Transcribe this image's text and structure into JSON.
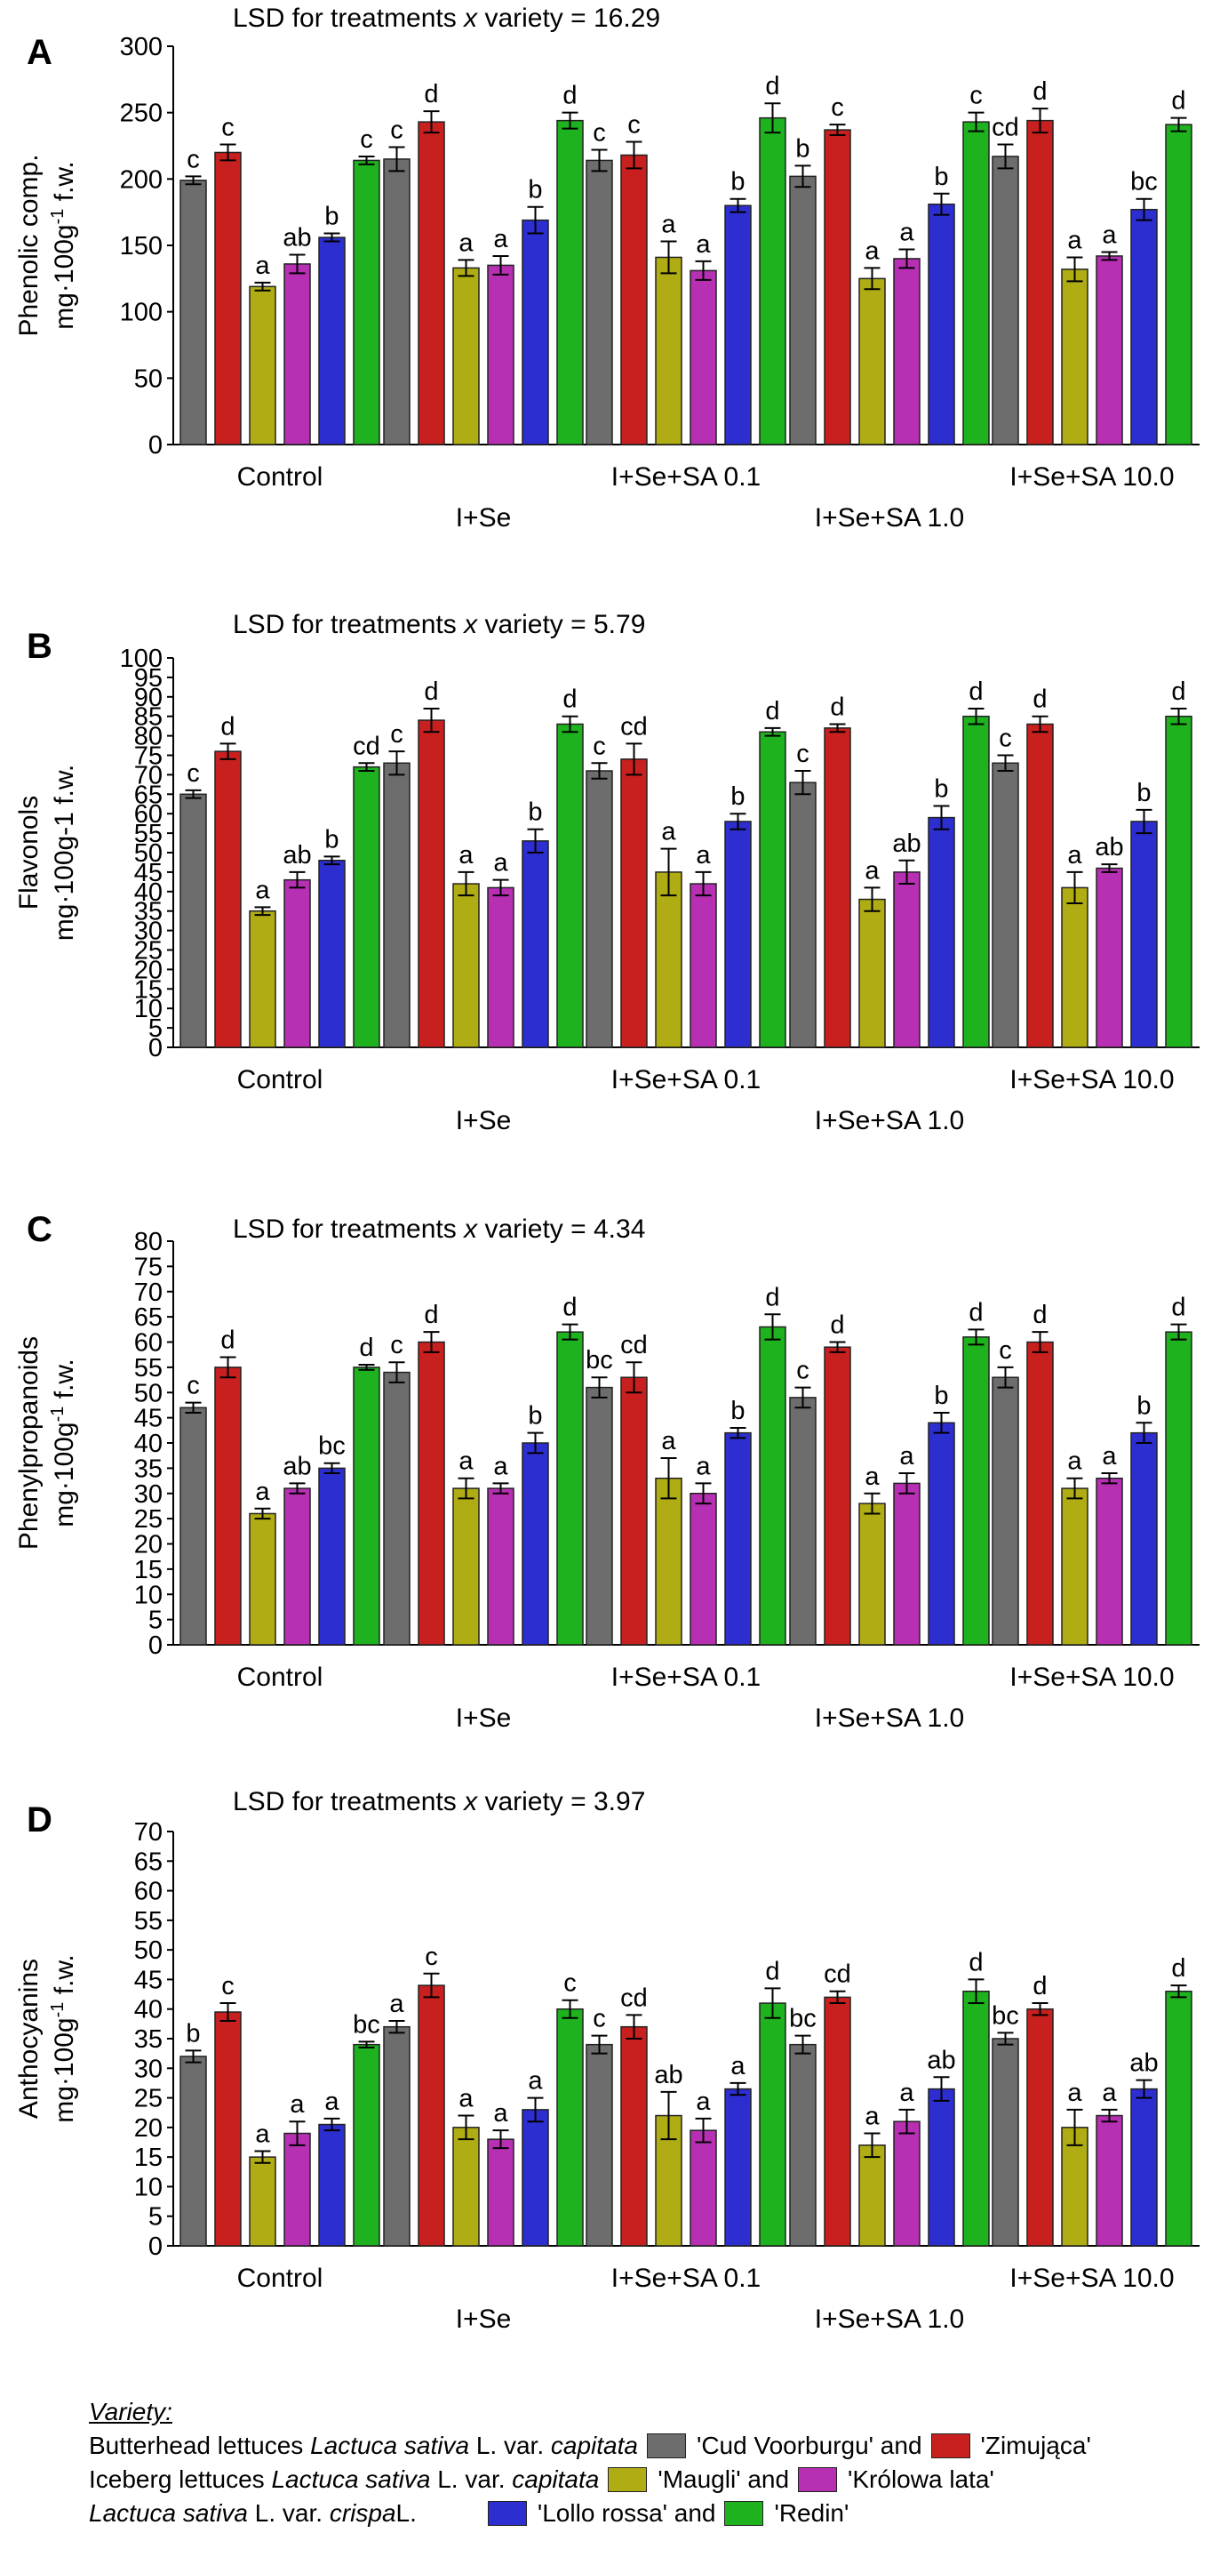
{
  "colors": {
    "Cud Voorburgu": "#6d6d6d",
    "Zimujaca": "#c8201e",
    "Maugli": "#b0ad14",
    "Krolowa lata": "#b72fb3",
    "Lollo rossa": "#2c2ed0",
    "Redin": "#1fb21f"
  },
  "chart_data": [
    {
      "type": "bar",
      "panel_letter": "A",
      "title": "LSD for treatments",
      "title_x": "x",
      "title_suffix": "variety = 16.29",
      "ylabel_line1": "Phenolic comp.",
      "ylabel_line2_pre": "mg·100g",
      "ylabel_sup": "-1",
      "ylabel_line2_post": " f.w.",
      "ylim": [
        0,
        300
      ],
      "yticks": [
        0,
        50,
        100,
        150,
        200,
        250,
        300
      ],
      "categories": [
        "Control",
        "I+Se",
        "I+Se+SA 0.1",
        "I+Se+SA 1.0",
        "I+Se+SA 10.0"
      ],
      "series": [
        {
          "name": "'Cud Voorburgu'",
          "values": [
            199,
            215,
            214,
            202,
            217
          ],
          "errors": [
            3,
            9,
            8,
            8,
            9
          ],
          "letters": [
            "c",
            "c",
            "c",
            "b",
            "cd"
          ]
        },
        {
          "name": "'Zimująca'",
          "values": [
            220,
            243,
            218,
            237,
            244
          ],
          "errors": [
            6,
            8,
            10,
            4,
            9
          ],
          "letters": [
            "c",
            "d",
            "c",
            "c",
            "d"
          ]
        },
        {
          "name": "'Maugli'",
          "values": [
            119,
            133,
            141,
            125,
            132
          ],
          "errors": [
            3,
            6,
            12,
            8,
            9
          ],
          "letters": [
            "a",
            "a",
            "a",
            "a",
            "a"
          ]
        },
        {
          "name": "'Królowa lata'",
          "values": [
            136,
            135,
            131,
            140,
            142
          ],
          "errors": [
            7,
            7,
            7,
            7,
            3
          ],
          "letters": [
            "ab",
            "a",
            "a",
            "a",
            "a"
          ]
        },
        {
          "name": "'Lollo rossa'",
          "values": [
            156,
            169,
            180,
            181,
            177
          ],
          "errors": [
            3,
            10,
            5,
            8,
            8
          ],
          "letters": [
            "b",
            "b",
            "b",
            "b",
            "bc"
          ]
        },
        {
          "name": "'Redin'",
          "values": [
            214,
            244,
            246,
            243,
            241
          ],
          "errors": [
            3,
            6,
            11,
            7,
            5
          ],
          "letters": [
            "c",
            "d",
            "d",
            "c",
            "d"
          ]
        }
      ]
    },
    {
      "type": "bar",
      "panel_letter": "B",
      "title": "LSD for treatments",
      "title_x": "x",
      "title_suffix": "variety = 5.79",
      "ylabel_line1": "Flavonols",
      "ylabel_line2_pre": "mg·100g-1 f.w.",
      "ylabel_sup": "",
      "ylabel_line2_post": "",
      "ylim": [
        0,
        100
      ],
      "yticks": [
        0,
        5,
        10,
        15,
        20,
        25,
        30,
        35,
        40,
        45,
        50,
        55,
        60,
        65,
        70,
        75,
        80,
        85,
        90,
        95,
        100
      ],
      "categories": [
        "Control",
        "I+Se",
        "I+Se+SA 0.1",
        "I+Se+SA 1.0",
        "I+Se+SA 10.0"
      ],
      "series": [
        {
          "name": "'Cud Voorburgu'",
          "values": [
            65,
            73,
            71,
            68,
            73
          ],
          "errors": [
            1,
            3,
            2,
            3,
            2
          ],
          "letters": [
            "c",
            "c",
            "c",
            "c",
            "c"
          ]
        },
        {
          "name": "'Zimująca'",
          "values": [
            76,
            84,
            74,
            82,
            83
          ],
          "errors": [
            2,
            3,
            4,
            1,
            2
          ],
          "letters": [
            "d",
            "d",
            "cd",
            "d",
            "d"
          ]
        },
        {
          "name": "'Maugli'",
          "values": [
            35,
            42,
            45,
            38,
            41
          ],
          "errors": [
            1,
            3,
            6,
            3,
            4
          ],
          "letters": [
            "a",
            "a",
            "a",
            "a",
            "a"
          ]
        },
        {
          "name": "'Królowa lata'",
          "values": [
            43,
            41,
            42,
            45,
            46
          ],
          "errors": [
            2,
            2,
            3,
            3,
            1
          ],
          "letters": [
            "ab",
            "a",
            "a",
            "ab",
            "ab"
          ]
        },
        {
          "name": "'Lollo rossa'",
          "values": [
            48,
            53,
            58,
            59,
            58
          ],
          "errors": [
            1,
            3,
            2,
            3,
            3
          ],
          "letters": [
            "b",
            "b",
            "b",
            "b",
            "b"
          ]
        },
        {
          "name": "'Redin'",
          "values": [
            72,
            83,
            81,
            85,
            85
          ],
          "errors": [
            1,
            2,
            1,
            2,
            2
          ],
          "letters": [
            "cd",
            "d",
            "d",
            "d",
            "d"
          ]
        }
      ]
    },
    {
      "type": "bar",
      "panel_letter": "C",
      "title": "LSD for treatments",
      "title_x": "x",
      "title_suffix": "variety = 4.34",
      "ylabel_line1": "Phenylpropanoids",
      "ylabel_line2_pre": "mg·100g",
      "ylabel_sup": "-1",
      "ylabel_line2_post": " f.w.",
      "ylim": [
        0,
        80
      ],
      "yticks": [
        0,
        5,
        10,
        15,
        20,
        25,
        30,
        35,
        40,
        45,
        50,
        55,
        60,
        65,
        70,
        75,
        80
      ],
      "categories": [
        "Control",
        "I+Se",
        "I+Se+SA 0.1",
        "I+Se+SA 1.0",
        "I+Se+SA 10.0"
      ],
      "series": [
        {
          "name": "'Cud Voorburgu'",
          "values": [
            47,
            54,
            51,
            49,
            53
          ],
          "errors": [
            1,
            2,
            2,
            2,
            2
          ],
          "letters": [
            "c",
            "c",
            "bc",
            "c",
            "c"
          ]
        },
        {
          "name": "'Zimująca'",
          "values": [
            55,
            60,
            53,
            59,
            60
          ],
          "errors": [
            2,
            2,
            3,
            1,
            2
          ],
          "letters": [
            "d",
            "d",
            "cd",
            "d",
            "d"
          ]
        },
        {
          "name": "'Maugli'",
          "values": [
            26,
            31,
            33,
            28,
            31
          ],
          "errors": [
            1,
            2,
            4,
            2,
            2
          ],
          "letters": [
            "a",
            "a",
            "a",
            "a",
            "a"
          ]
        },
        {
          "name": "'Królowa lata'",
          "values": [
            31,
            31,
            30,
            32,
            33
          ],
          "errors": [
            1,
            1,
            2,
            2,
            1
          ],
          "letters": [
            "ab",
            "a",
            "a",
            "a",
            "a"
          ]
        },
        {
          "name": "'Lollo rossa'",
          "values": [
            35,
            40,
            42,
            44,
            42
          ],
          "errors": [
            1,
            2,
            1,
            2,
            2
          ],
          "letters": [
            "bc",
            "b",
            "b",
            "b",
            "b"
          ]
        },
        {
          "name": "'Redin'",
          "values": [
            55,
            62,
            63,
            61,
            62
          ],
          "errors": [
            0.5,
            1.5,
            2.5,
            1.5,
            1.5
          ],
          "letters": [
            "d",
            "d",
            "d",
            "d",
            "d"
          ]
        }
      ]
    },
    {
      "type": "bar",
      "panel_letter": "D",
      "title": "LSD for treatments",
      "title_x": "x",
      "title_suffix": "variety = 3.97",
      "ylabel_line1": "Anthocyanins",
      "ylabel_line2_pre": "mg·100g",
      "ylabel_sup": "-1",
      "ylabel_line2_post": " f.w.",
      "ylim": [
        0,
        70
      ],
      "yticks": [
        0,
        5,
        10,
        15,
        20,
        25,
        30,
        35,
        40,
        45,
        50,
        55,
        60,
        65,
        70
      ],
      "categories": [
        "Control",
        "I+Se",
        "I+Se+SA 0.1",
        "I+Se+SA 1.0",
        "I+Se+SA 10.0"
      ],
      "series": [
        {
          "name": "'Cud Voorburgu'",
          "values": [
            32,
            37,
            34,
            34,
            35
          ],
          "errors": [
            1,
            1,
            1.5,
            1.5,
            1
          ],
          "letters": [
            "b",
            "a",
            "c",
            "bc",
            "bc"
          ]
        },
        {
          "name": "'Zimująca'",
          "values": [
            39.5,
            44,
            37,
            42,
            40
          ],
          "errors": [
            1.5,
            2,
            2,
            1,
            1
          ],
          "letters": [
            "c",
            "c",
            "cd",
            "cd",
            "d"
          ]
        },
        {
          "name": "'Maugli'",
          "values": [
            15,
            20,
            22,
            17,
            20
          ],
          "errors": [
            1,
            2,
            4,
            2,
            3
          ],
          "letters": [
            "a",
            "a",
            "ab",
            "a",
            "a"
          ]
        },
        {
          "name": "'Królowa lata'",
          "values": [
            19,
            18,
            19.5,
            21,
            22
          ],
          "errors": [
            2,
            1.5,
            2,
            2,
            1
          ],
          "letters": [
            "a",
            "a",
            "a",
            "a",
            "a"
          ]
        },
        {
          "name": "'Lollo rossa'",
          "values": [
            20.5,
            23,
            26.5,
            26.5,
            26.5
          ],
          "errors": [
            1,
            2,
            1,
            2,
            1.5
          ],
          "letters": [
            "a",
            "a",
            "a",
            "ab",
            "ab"
          ]
        },
        {
          "name": "'Redin'",
          "values": [
            34,
            40,
            41,
            43,
            43
          ],
          "errors": [
            0.5,
            1.5,
            2.5,
            2,
            1
          ],
          "letters": [
            "bc",
            "c",
            "d",
            "d",
            "d"
          ]
        }
      ]
    }
  ],
  "legend": {
    "title": "Variety:",
    "rows": [
      {
        "prefix": "Butterhead lettuces ",
        "latin": "Lactuca sativa",
        "mid": " L. var. ",
        "var": "capitata",
        "item1": "'Cud Voorburgu' and",
        "item2": "'Zimująca'"
      },
      {
        "prefix": "Iceberg lettuces ",
        "latin": "Lactuca sativa",
        "mid": " L. var. ",
        "var": "capitata",
        "item1": "'Maugli' and",
        "item2": "'Królowa lata'"
      },
      {
        "prefix": "",
        "latin": "Lactuca sativa",
        "mid": " L. var. ",
        "var": "crispa",
        "item1": "'Lollo rossa' and",
        "item2": "'Redin'",
        "suffix": " L."
      }
    ]
  }
}
